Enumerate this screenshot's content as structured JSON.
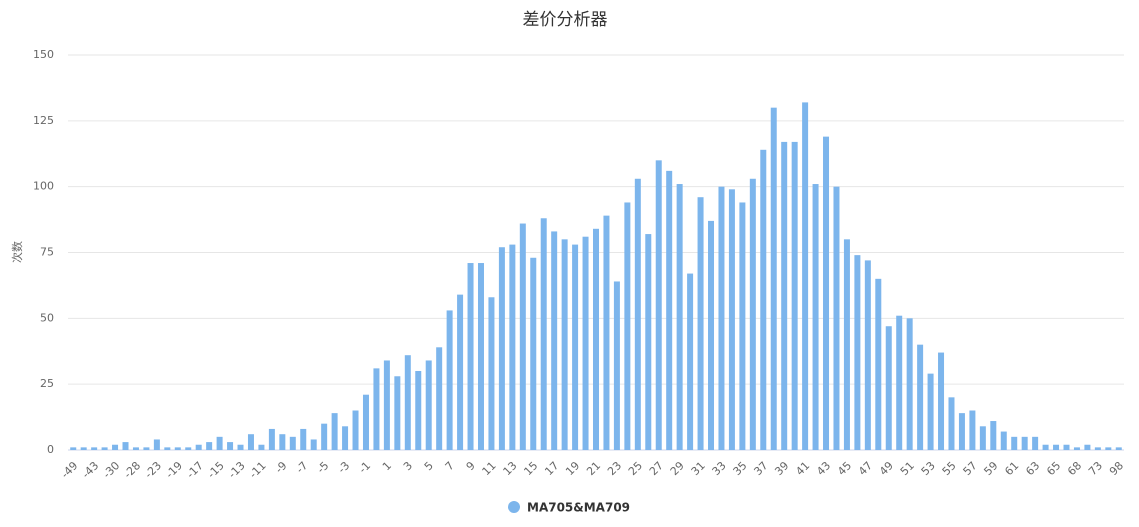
{
  "chart_data": {
    "type": "bar",
    "title": "差价分析器",
    "y_label": "次数",
    "categories": [
      "-49",
      null,
      "-43",
      null,
      "-30",
      null,
      "-28",
      null,
      "-23",
      null,
      "-19",
      null,
      "-17",
      null,
      "-15",
      null,
      "-13",
      null,
      "-11",
      null,
      "-9",
      null,
      "-7",
      null,
      "-5",
      null,
      "-3",
      null,
      "-1",
      null,
      "1",
      null,
      "3",
      null,
      "5",
      null,
      "7",
      null,
      "9",
      null,
      "11",
      null,
      "13",
      null,
      "15",
      null,
      "17",
      null,
      "19",
      null,
      "21",
      null,
      "23",
      null,
      "25",
      null,
      "27",
      null,
      "29",
      null,
      "31",
      null,
      "33",
      null,
      "35",
      null,
      "37",
      null,
      "39",
      null,
      "41",
      null,
      "43",
      null,
      "45",
      null,
      "47",
      null,
      "49",
      null,
      "51",
      null,
      "53",
      null,
      "55",
      null,
      "57",
      null,
      "59",
      null,
      "61",
      null,
      "63",
      null,
      "65",
      null,
      "68",
      null,
      "73",
      null,
      "98"
    ],
    "series": [
      {
        "name": "MA705&MA709",
        "color": "#7cb5ec",
        "values": [
          1,
          1,
          1,
          1,
          2,
          3,
          1,
          1,
          4,
          1,
          1,
          1,
          2,
          3,
          5,
          3,
          2,
          6,
          2,
          8,
          6,
          5,
          8,
          4,
          10,
          14,
          9,
          15,
          21,
          31,
          34,
          28,
          36,
          30,
          34,
          39,
          53,
          59,
          71,
          71,
          58,
          77,
          78,
          86,
          73,
          88,
          83,
          80,
          78,
          81,
          84,
          89,
          64,
          94,
          103,
          82,
          110,
          106,
          101,
          67,
          96,
          87,
          100,
          99,
          94,
          103,
          114,
          130,
          117,
          117,
          132,
          101,
          119,
          100,
          80,
          74,
          72,
          65,
          47,
          51,
          50,
          40,
          29,
          37,
          20,
          14,
          15,
          9,
          11,
          7,
          5,
          5,
          5,
          2,
          2,
          2,
          1,
          2,
          1,
          1,
          1
        ]
      }
    ],
    "ylim": [
      0,
      150
    ],
    "yticks": [
      0,
      25,
      50,
      75,
      100,
      125,
      150
    ],
    "grid": true
  }
}
